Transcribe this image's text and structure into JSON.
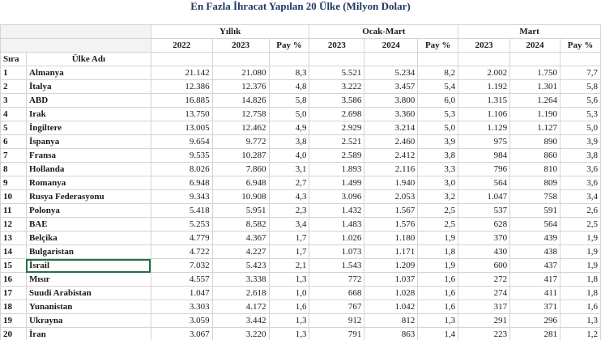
{
  "title": "En Fazla İhracat Yapılan 20 Ülke (Milyon Dolar)",
  "groups": [
    "Yıllık",
    "Ocak-Mart",
    "Mart"
  ],
  "subheaders": [
    "2022",
    "2023",
    "Pay %",
    "2023",
    "2024",
    "Pay %",
    "2023",
    "2024",
    "Pay %"
  ],
  "row_headers": [
    "Sıra",
    "Ülke Adı"
  ],
  "rows": [
    {
      "rank": "1",
      "country": "Almanya",
      "v": [
        "21.142",
        "21.080",
        "8,3",
        "5.521",
        "5.234",
        "8,2",
        "2.002",
        "1.750",
        "7,7"
      ]
    },
    {
      "rank": "2",
      "country": "İtalya",
      "v": [
        "12.386",
        "12.376",
        "4,8",
        "3.222",
        "3.457",
        "5,4",
        "1.192",
        "1.301",
        "5,8"
      ]
    },
    {
      "rank": "3",
      "country": "ABD",
      "v": [
        "16.885",
        "14.826",
        "5,8",
        "3.586",
        "3.800",
        "6,0",
        "1.315",
        "1.264",
        "5,6"
      ]
    },
    {
      "rank": "4",
      "country": "Irak",
      "v": [
        "13.750",
        "12.758",
        "5,0",
        "2.698",
        "3.360",
        "5,3",
        "1.106",
        "1.190",
        "5,3"
      ]
    },
    {
      "rank": "5",
      "country": "İngiltere",
      "v": [
        "13.005",
        "12.462",
        "4,9",
        "2.929",
        "3.214",
        "5,0",
        "1.129",
        "1.127",
        "5,0"
      ]
    },
    {
      "rank": "6",
      "country": "İspanya",
      "v": [
        "9.654",
        "9.772",
        "3,8",
        "2.521",
        "2.460",
        "3,9",
        "975",
        "890",
        "3,9"
      ]
    },
    {
      "rank": "7",
      "country": "Fransa",
      "v": [
        "9.535",
        "10.287",
        "4,0",
        "2.589",
        "2.412",
        "3,8",
        "984",
        "860",
        "3,8"
      ]
    },
    {
      "rank": "8",
      "country": "Hollanda",
      "v": [
        "8.026",
        "7.860",
        "3,1",
        "1.893",
        "2.116",
        "3,3",
        "796",
        "810",
        "3,6"
      ]
    },
    {
      "rank": "9",
      "country": "Romanya",
      "v": [
        "6.948",
        "6.948",
        "2,7",
        "1.499",
        "1.940",
        "3,0",
        "564",
        "809",
        "3,6"
      ]
    },
    {
      "rank": "10",
      "country": "Rusya Federasyonu",
      "v": [
        "9.343",
        "10.908",
        "4,3",
        "3.096",
        "2.053",
        "3,2",
        "1.047",
        "758",
        "3,4"
      ]
    },
    {
      "rank": "11",
      "country": "Polonya",
      "v": [
        "5.418",
        "5.951",
        "2,3",
        "1.432",
        "1.567",
        "2,5",
        "537",
        "591",
        "2,6"
      ]
    },
    {
      "rank": "12",
      "country": "BAE",
      "v": [
        "5.253",
        "8.582",
        "3,4",
        "1.483",
        "1.576",
        "2,5",
        "628",
        "564",
        "2,5"
      ]
    },
    {
      "rank": "13",
      "country": "Belçika",
      "v": [
        "4.779",
        "4.367",
        "1,7",
        "1.026",
        "1.180",
        "1,9",
        "370",
        "439",
        "1,9"
      ]
    },
    {
      "rank": "14",
      "country": "Bulgaristan",
      "v": [
        "4.722",
        "4.227",
        "1,7",
        "1.073",
        "1.171",
        "1,8",
        "430",
        "438",
        "1,9"
      ]
    },
    {
      "rank": "15",
      "country": "İsrail",
      "v": [
        "7.032",
        "5.423",
        "2,1",
        "1.543",
        "1.209",
        "1,9",
        "600",
        "437",
        "1,9"
      ]
    },
    {
      "rank": "16",
      "country": "Mısır",
      "v": [
        "4.557",
        "3.338",
        "1,3",
        "772",
        "1.037",
        "1,6",
        "272",
        "417",
        "1,8"
      ]
    },
    {
      "rank": "17",
      "country": "Suudi Arabistan",
      "v": [
        "1.047",
        "2.618",
        "1,0",
        "668",
        "1.028",
        "1,6",
        "274",
        "411",
        "1,8"
      ]
    },
    {
      "rank": "18",
      "country": "Yunanistan",
      "v": [
        "3.303",
        "4.172",
        "1,6",
        "767",
        "1.042",
        "1,6",
        "317",
        "371",
        "1,6"
      ]
    },
    {
      "rank": "19",
      "country": "Ukrayna",
      "v": [
        "3.059",
        "3.442",
        "1,3",
        "912",
        "812",
        "1,3",
        "291",
        "296",
        "1,3"
      ]
    },
    {
      "rank": "20",
      "country": "İran",
      "v": [
        "3.067",
        "3.220",
        "1,3",
        "791",
        "863",
        "1,4",
        "223",
        "281",
        "1,2"
      ]
    }
  ],
  "colors": {
    "title": "#1f3864",
    "header_bg": "#f3f3f3",
    "grid": "#d4d4d4",
    "selection": "#1e7145"
  }
}
